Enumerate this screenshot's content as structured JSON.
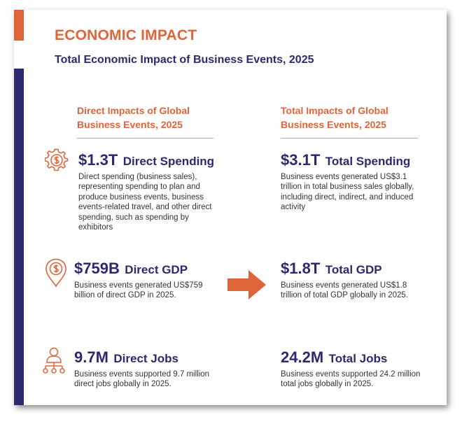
{
  "header": {
    "title": "ECONOMIC IMPACT",
    "subtitle": "Total Economic Impact of Business Events, 2025"
  },
  "left_column": {
    "heading_line1": "Direct Impacts of Global",
    "heading_line2": "Business Events, 2025",
    "items": [
      {
        "value": "$1.3T",
        "label": "Direct Spending",
        "icon": "gear-dollar-icon",
        "description": "Direct spending (business sales), representing spending to plan and produce business events, business events-related travel, and other direct spending, such as spending by exhibitors"
      },
      {
        "value": "$759B",
        "label": "Direct GDP",
        "icon": "location-dollar-icon",
        "description": "Business events generated US$759 billion of direct GDP in 2025."
      },
      {
        "value": "9.7M",
        "label": "Direct Jobs",
        "icon": "people-network-icon",
        "description": "Business events supported 9.7 million direct jobs globally in 2025."
      }
    ]
  },
  "right_column": {
    "heading_line1": "Total Impacts of Global",
    "heading_line2": "Business Events, 2025",
    "items": [
      {
        "value": "$3.1T",
        "label": "Total Spending",
        "description": "Business events generated US$3.1 trillion in total business sales globally, including direct, indirect, and induced activity"
      },
      {
        "value": "$1.8T",
        "label": "Total GDP",
        "description": "Business events generated US$1.8 trillion of total GDP globally in 2025."
      },
      {
        "value": "24.2M",
        "label": "Total Jobs",
        "description": "Business events supported 24.2 million total jobs globally in 2025."
      }
    ]
  },
  "colors": {
    "accent_orange": "#e0643a",
    "navy": "#2c2a6e",
    "body_text": "#333333"
  },
  "connector_icon": "right-arrow-icon"
}
